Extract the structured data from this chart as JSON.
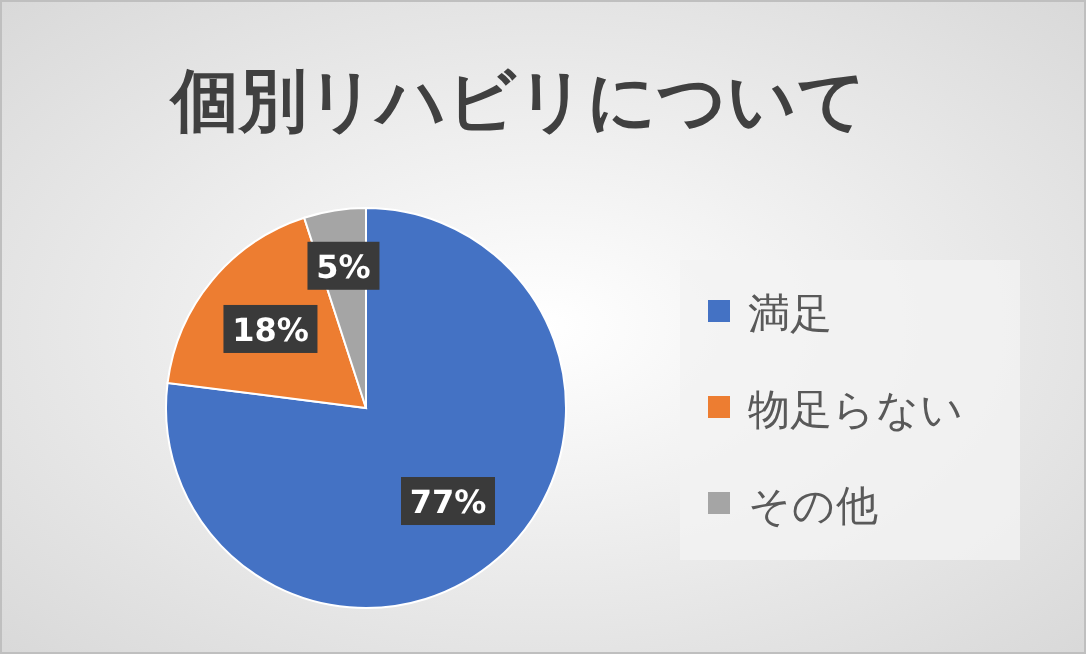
{
  "chart_data": {
    "type": "pie",
    "title": "個別リハビリについて",
    "categories": [
      "満足",
      "物足らない",
      "その他"
    ],
    "values": [
      77,
      18,
      5
    ],
    "colors": [
      "#4472c4",
      "#ed7d31",
      "#a5a5a5"
    ],
    "value_labels": [
      "77%",
      "18%",
      "5%"
    ],
    "legend": "right"
  }
}
